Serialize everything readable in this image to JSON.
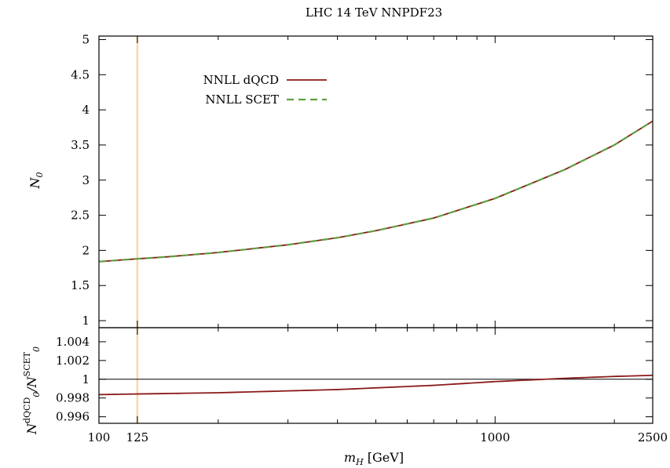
{
  "chart_data": {
    "type": "line",
    "title": "LHC 14 TeV NNPDF23",
    "xlabel": "m_H [GeV]",
    "x_scale": "log",
    "xlim": [
      100,
      2500
    ],
    "x_ticks": [
      100,
      125,
      1000,
      2500
    ],
    "x_tick_labels": [
      "100",
      "125",
      "1000",
      "2500"
    ],
    "vertical_marker": {
      "x": 125,
      "color": "#f9d9a6"
    },
    "main_panel": {
      "ylabel": "N_0",
      "ylim": [
        0.9,
        5.05
      ],
      "y_ticks": [
        1,
        1.5,
        2,
        2.5,
        3,
        3.5,
        4,
        4.5,
        5
      ],
      "y_tick_labels": [
        "1",
        "1.5",
        "2",
        "2.5",
        "3",
        "3.5",
        "4",
        "4.5",
        "5"
      ],
      "legend_position": "top-left",
      "series": [
        {
          "name": "NNLL dQCD",
          "color": "#8b1a1a",
          "style": "solid",
          "x": [
            100,
            125,
            150,
            200,
            300,
            400,
            500,
            700,
            1000,
            1500,
            2000,
            2500
          ],
          "y": [
            1.84,
            1.88,
            1.91,
            1.97,
            2.08,
            2.18,
            2.28,
            2.46,
            2.74,
            3.15,
            3.5,
            3.84
          ]
        },
        {
          "name": "NNLL SCET",
          "color": "#5fa041",
          "style": "dashed",
          "x": [
            100,
            125,
            150,
            200,
            300,
            400,
            500,
            700,
            1000,
            1500,
            2000,
            2500
          ],
          "y": [
            1.84,
            1.88,
            1.91,
            1.97,
            2.08,
            2.18,
            2.28,
            2.46,
            2.74,
            3.15,
            3.5,
            3.84
          ]
        }
      ]
    },
    "ratio_panel": {
      "ylim": [
        0.9953,
        1.0055
      ],
      "y_ticks": [
        0.996,
        0.998,
        1,
        1.002,
        1.004
      ],
      "y_tick_labels": [
        "0.996",
        "0.998",
        "1",
        "1.002",
        "1.004"
      ],
      "reference_line": 1,
      "series": [
        {
          "name": "ratio",
          "color": "#8b1a1a",
          "style": "solid",
          "x": [
            100,
            125,
            200,
            400,
            700,
            1000,
            1500,
            2000,
            2500
          ],
          "y": [
            0.99836,
            0.99843,
            0.99856,
            0.9989,
            0.99935,
            0.99975,
            1.0001,
            1.0003,
            1.00042
          ]
        }
      ]
    }
  }
}
